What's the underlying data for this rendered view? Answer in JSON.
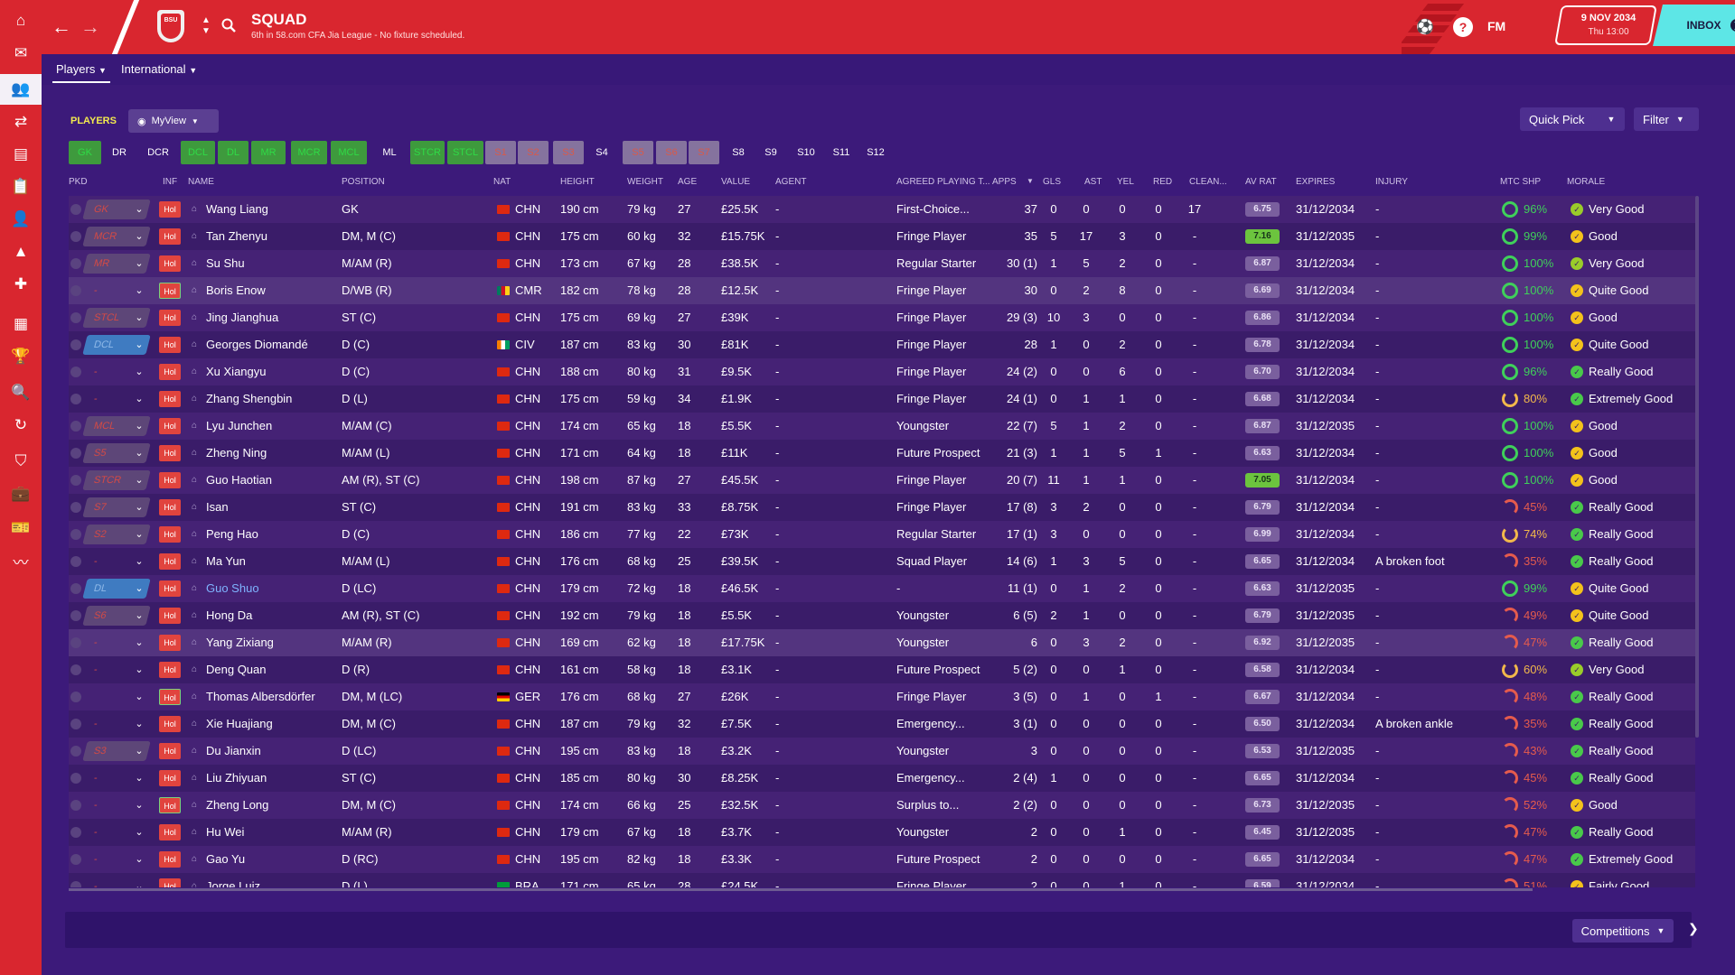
{
  "sidebar": {
    "items": [
      {
        "icon": "home-icon"
      },
      {
        "icon": "inbox-icon"
      },
      {
        "icon": "squad-icon",
        "active": true
      },
      {
        "icon": "transfers-icon"
      },
      {
        "icon": "dynamics-icon"
      },
      {
        "icon": "tactics-icon"
      },
      {
        "icon": "staff-icon"
      },
      {
        "icon": "training-icon"
      },
      {
        "icon": "medical-icon"
      },
      {
        "icon": "schedule-icon"
      },
      {
        "icon": "competitions-icon"
      },
      {
        "icon": "scouting-icon"
      },
      {
        "icon": "development-icon"
      },
      {
        "icon": "club-info-icon"
      },
      {
        "icon": "finances-icon"
      },
      {
        "icon": "tickets-icon"
      },
      {
        "icon": "data-hub-icon"
      }
    ]
  },
  "topbar": {
    "title": "SQUAD",
    "subtitle": "6th in 58.com CFA Jia League - No fixture scheduled.",
    "club_badge": "BSU",
    "fm_label": "FM",
    "date": "9 NOV 2034",
    "time": "Thu 13:00",
    "inbox_label": "INBOX"
  },
  "subnav": {
    "tabs": [
      "Players",
      "International"
    ]
  },
  "toolbar": {
    "players_label": "PLAYERS",
    "view_label": "MyView",
    "quick_pick": "Quick Pick",
    "filter": "Filter"
  },
  "formation_chips": [
    {
      "label": "GK",
      "style": "green"
    },
    {
      "label": "DR",
      "style": "none"
    },
    {
      "label": "DCR",
      "style": "none"
    },
    {
      "label": "DCL",
      "style": "green"
    },
    {
      "label": "DL",
      "style": "green"
    },
    {
      "label": "MR",
      "style": "green"
    },
    {
      "label": "MCR",
      "style": "green"
    },
    {
      "label": "MCL",
      "style": "green"
    },
    {
      "label": "ML",
      "style": "none"
    },
    {
      "label": "STCR",
      "style": "green"
    },
    {
      "label": "STCL",
      "style": "green"
    },
    {
      "label": "S1",
      "style": "gray"
    },
    {
      "label": "S2",
      "style": "gray"
    },
    {
      "label": "S3",
      "style": "gray"
    },
    {
      "label": "S4",
      "style": "none"
    },
    {
      "label": "S5",
      "style": "gray"
    },
    {
      "label": "S6",
      "style": "gray"
    },
    {
      "label": "S7",
      "style": "gray"
    },
    {
      "label": "S8",
      "style": "none"
    },
    {
      "label": "S9",
      "style": "none"
    },
    {
      "label": "S10",
      "style": "none"
    },
    {
      "label": "S11",
      "style": "none"
    },
    {
      "label": "S12",
      "style": "none"
    }
  ],
  "columns": [
    "PKD",
    "INF",
    "NAME",
    "POSITION",
    "NAT",
    "HEIGHT",
    "WEIGHT",
    "AGE",
    "VALUE",
    "AGENT",
    "AGREED PLAYING T...",
    "APPS",
    "GLS",
    "AST",
    "YEL",
    "RED",
    "CLEAN...",
    "AV RAT",
    "EXPIRES",
    "INJURY",
    "MTC SHP",
    "MORALE"
  ],
  "players": [
    {
      "sel": "GK",
      "selstyle": "gray",
      "inf": "Hol",
      "name": "Wang Liang",
      "pos": "GK",
      "nat": "CHN",
      "flag": "chn",
      "height": "190 cm",
      "weight": "79 kg",
      "age": "27",
      "value": "£25.5K",
      "agent": "-",
      "apt": "First-Choice...",
      "apps": "37",
      "gls": "0",
      "ast": "0",
      "yel": "0",
      "red": "0",
      "clean": "17",
      "avrat": "6.75",
      "expires": "31/12/2034",
      "injury": "-",
      "mtc": "96%",
      "mtcstate": "full",
      "morale": "Very Good",
      "mstate": "vg"
    },
    {
      "sel": "MCR",
      "selstyle": "gray",
      "inf": "Hol",
      "name": "Tan Zhenyu",
      "pos": "DM, M (C)",
      "nat": "CHN",
      "flag": "chn",
      "height": "175 cm",
      "weight": "60 kg",
      "age": "32",
      "value": "£15.75K",
      "agent": "-",
      "apt": "Fringe Player",
      "apps": "35",
      "gls": "5",
      "ast": "17",
      "yel": "3",
      "red": "0",
      "clean": "-",
      "avrat": "7.16",
      "ratgood": true,
      "expires": "31/12/2035",
      "injury": "-",
      "mtc": "99%",
      "mtcstate": "full",
      "morale": "Good",
      "mstate": "g"
    },
    {
      "sel": "MR",
      "selstyle": "gray",
      "inf": "Hol",
      "name": "Su Shu",
      "pos": "M/AM (R)",
      "nat": "CHN",
      "flag": "chn",
      "height": "173 cm",
      "weight": "67 kg",
      "age": "28",
      "value": "£38.5K",
      "agent": "-",
      "apt": "Regular Starter",
      "apps": "30 (1)",
      "gls": "1",
      "ast": "5",
      "yel": "2",
      "red": "0",
      "clean": "-",
      "avrat": "6.87",
      "expires": "31/12/2034",
      "injury": "-",
      "mtc": "100%",
      "mtcstate": "full",
      "morale": "Very Good",
      "mstate": "vg"
    },
    {
      "sel": "-",
      "selstyle": "dash",
      "inf": "Hol",
      "infhl": true,
      "name": "Boris Enow",
      "pos": "D/WB (R)",
      "nat": "CMR",
      "flag": "cmr",
      "height": "182 cm",
      "weight": "78 kg",
      "age": "28",
      "value": "£12.5K",
      "agent": "-",
      "apt": "Fringe Player",
      "apps": "30",
      "gls": "0",
      "ast": "2",
      "yel": "8",
      "red": "0",
      "clean": "-",
      "avrat": "6.69",
      "expires": "31/12/2034",
      "injury": "-",
      "mtc": "100%",
      "mtcstate": "full",
      "morale": "Quite Good",
      "mstate": "g"
    },
    {
      "sel": "STCL",
      "selstyle": "gray",
      "inf": "Hol",
      "name": "Jing Jianghua",
      "pos": "ST (C)",
      "nat": "CHN",
      "flag": "chn",
      "height": "175 cm",
      "weight": "69 kg",
      "age": "27",
      "value": "£39K",
      "agent": "-",
      "apt": "Fringe Player",
      "apps": "29 (3)",
      "gls": "10",
      "ast": "3",
      "yel": "0",
      "red": "0",
      "clean": "-",
      "avrat": "6.86",
      "expires": "31/12/2034",
      "injury": "-",
      "mtc": "100%",
      "mtcstate": "full",
      "morale": "Good",
      "mstate": "g"
    },
    {
      "sel": "DCL",
      "selstyle": "blue",
      "inf": "Hol",
      "name": "Georges Diomandé",
      "pos": "D (C)",
      "nat": "CIV",
      "flag": "civ",
      "height": "187 cm",
      "weight": "83 kg",
      "age": "30",
      "value": "£81K",
      "agent": "-",
      "apt": "Fringe Player",
      "apps": "28",
      "gls": "1",
      "ast": "0",
      "yel": "2",
      "red": "0",
      "clean": "-",
      "avrat": "6.78",
      "expires": "31/12/2034",
      "injury": "-",
      "mtc": "100%",
      "mtcstate": "full",
      "morale": "Quite Good",
      "mstate": "g"
    },
    {
      "sel": "-",
      "selstyle": "dash",
      "inf": "Hol",
      "name": "Xu Xiangyu",
      "pos": "D (C)",
      "nat": "CHN",
      "flag": "chn",
      "height": "188 cm",
      "weight": "80 kg",
      "age": "31",
      "value": "£9.5K",
      "agent": "-",
      "apt": "Fringe Player",
      "apps": "24 (2)",
      "gls": "0",
      "ast": "0",
      "yel": "6",
      "red": "0",
      "clean": "-",
      "avrat": "6.70",
      "expires": "31/12/2034",
      "injury": "-",
      "mtc": "96%",
      "mtcstate": "full",
      "morale": "Really Good",
      "mstate": "eg"
    },
    {
      "sel": "-",
      "selstyle": "dash",
      "inf": "Hol",
      "name": "Zhang Shengbin",
      "pos": "D (L)",
      "nat": "CHN",
      "flag": "chn",
      "height": "175 cm",
      "weight": "59 kg",
      "age": "34",
      "value": "£1.9K",
      "agent": "-",
      "apt": "Fringe Player",
      "apps": "24 (1)",
      "gls": "0",
      "ast": "1",
      "yel": "1",
      "red": "0",
      "clean": "-",
      "avrat": "6.68",
      "expires": "31/12/2034",
      "injury": "-",
      "mtc": "80%",
      "mtcstate": "mid",
      "morale": "Extremely Good",
      "mstate": "eg"
    },
    {
      "sel": "MCL",
      "selstyle": "gray",
      "inf": "Hol",
      "name": "Lyu Junchen",
      "pos": "M/AM (C)",
      "nat": "CHN",
      "flag": "chn",
      "height": "174 cm",
      "weight": "65 kg",
      "age": "18",
      "value": "£5.5K",
      "agent": "-",
      "apt": "Youngster",
      "apps": "22 (7)",
      "gls": "5",
      "ast": "1",
      "yel": "2",
      "red": "0",
      "clean": "-",
      "avrat": "6.87",
      "expires": "31/12/2035",
      "injury": "-",
      "mtc": "100%",
      "mtcstate": "full",
      "morale": "Good",
      "mstate": "g"
    },
    {
      "sel": "S5",
      "selstyle": "gray",
      "inf": "Hol",
      "name": "Zheng Ning",
      "pos": "M/AM (L)",
      "nat": "CHN",
      "flag": "chn",
      "height": "171 cm",
      "weight": "64 kg",
      "age": "18",
      "value": "£11K",
      "agent": "-",
      "apt": "Future Prospect",
      "apps": "21 (3)",
      "gls": "1",
      "ast": "1",
      "yel": "5",
      "red": "1",
      "clean": "-",
      "avrat": "6.63",
      "expires": "31/12/2034",
      "injury": "-",
      "mtc": "100%",
      "mtcstate": "full",
      "morale": "Good",
      "mstate": "g"
    },
    {
      "sel": "STCR",
      "selstyle": "gray",
      "inf": "Hol",
      "name": "Guo Haotian",
      "pos": "AM (R), ST (C)",
      "nat": "CHN",
      "flag": "chn",
      "height": "198 cm",
      "weight": "87 kg",
      "age": "27",
      "value": "£45.5K",
      "agent": "-",
      "apt": "Fringe Player",
      "apps": "20 (7)",
      "gls": "11",
      "ast": "1",
      "yel": "1",
      "red": "0",
      "clean": "-",
      "avrat": "7.05",
      "ratgood": true,
      "expires": "31/12/2034",
      "injury": "-",
      "mtc": "100%",
      "mtcstate": "full",
      "morale": "Good",
      "mstate": "g"
    },
    {
      "sel": "S7",
      "selstyle": "gray",
      "inf": "Hol",
      "name": "Isan",
      "pos": "ST (C)",
      "nat": "CHN",
      "flag": "chn",
      "height": "191 cm",
      "weight": "83 kg",
      "age": "33",
      "value": "£8.75K",
      "agent": "-",
      "apt": "Fringe Player",
      "apps": "17 (8)",
      "gls": "3",
      "ast": "2",
      "yel": "0",
      "red": "0",
      "clean": "-",
      "avrat": "6.79",
      "expires": "31/12/2034",
      "injury": "-",
      "mtc": "45%",
      "mtcstate": "low",
      "morale": "Really Good",
      "mstate": "eg"
    },
    {
      "sel": "S2",
      "selstyle": "gray",
      "inf": "Hol",
      "name": "Peng Hao",
      "pos": "D (C)",
      "nat": "CHN",
      "flag": "chn",
      "height": "186 cm",
      "weight": "77 kg",
      "age": "22",
      "value": "£73K",
      "agent": "-",
      "apt": "Regular Starter",
      "apps": "17 (1)",
      "gls": "3",
      "ast": "0",
      "yel": "0",
      "red": "0",
      "clean": "-",
      "avrat": "6.99",
      "expires": "31/12/2034",
      "injury": "-",
      "mtc": "74%",
      "mtcstate": "mid",
      "morale": "Really Good",
      "mstate": "eg"
    },
    {
      "sel": "-",
      "selstyle": "dash",
      "inf": "Hol",
      "name": "Ma Yun",
      "pos": "M/AM (L)",
      "nat": "CHN",
      "flag": "chn",
      "height": "176 cm",
      "weight": "68 kg",
      "age": "25",
      "value": "£39.5K",
      "agent": "-",
      "apt": "Squad Player",
      "apps": "14 (6)",
      "gls": "1",
      "ast": "3",
      "yel": "5",
      "red": "0",
      "clean": "-",
      "avrat": "6.65",
      "expires": "31/12/2034",
      "injury": "A broken foot",
      "mtc": "35%",
      "mtcstate": "low",
      "morale": "Really Good",
      "mstate": "eg"
    },
    {
      "sel": "DL",
      "selstyle": "blue",
      "inf": "Hol",
      "name": "Guo Shuo",
      "link": true,
      "pos": "D (LC)",
      "nat": "CHN",
      "flag": "chn",
      "height": "179 cm",
      "weight": "72 kg",
      "age": "18",
      "value": "£46.5K",
      "agent": "-",
      "apt": "-",
      "apps": "11 (1)",
      "gls": "0",
      "ast": "1",
      "yel": "2",
      "red": "0",
      "clean": "-",
      "avrat": "6.63",
      "expires": "31/12/2035",
      "injury": "-",
      "mtc": "99%",
      "mtcstate": "full",
      "morale": "Quite Good",
      "mstate": "g"
    },
    {
      "sel": "S6",
      "selstyle": "gray",
      "inf": "Hol",
      "name": "Hong Da",
      "pos": "AM (R), ST (C)",
      "nat": "CHN",
      "flag": "chn",
      "height": "192 cm",
      "weight": "79 kg",
      "age": "18",
      "value": "£5.5K",
      "agent": "-",
      "apt": "Youngster",
      "apps": "6 (5)",
      "gls": "2",
      "ast": "1",
      "yel": "0",
      "red": "0",
      "clean": "-",
      "avrat": "6.79",
      "expires": "31/12/2035",
      "injury": "-",
      "mtc": "49%",
      "mtcstate": "low",
      "morale": "Quite Good",
      "mstate": "g"
    },
    {
      "sel": "-",
      "selstyle": "dash",
      "inf": "Hol",
      "name": "Yang Zixiang",
      "pos": "M/AM (R)",
      "nat": "CHN",
      "flag": "chn",
      "height": "169 cm",
      "weight": "62 kg",
      "age": "18",
      "value": "£17.75K",
      "agent": "-",
      "apt": "Youngster",
      "apps": "6",
      "gls": "0",
      "ast": "3",
      "yel": "2",
      "red": "0",
      "clean": "-",
      "avrat": "6.92",
      "expires": "31/12/2035",
      "injury": "-",
      "mtc": "47%",
      "mtcstate": "low",
      "morale": "Really Good",
      "mstate": "eg"
    },
    {
      "sel": "-",
      "selstyle": "dash",
      "inf": "Hol",
      "name": "Deng Quan",
      "pos": "D (R)",
      "nat": "CHN",
      "flag": "chn",
      "height": "161 cm",
      "weight": "58 kg",
      "age": "18",
      "value": "£3.1K",
      "agent": "-",
      "apt": "Future Prospect",
      "apps": "5 (2)",
      "gls": "0",
      "ast": "0",
      "yel": "1",
      "red": "0",
      "clean": "-",
      "avrat": "6.58",
      "expires": "31/12/2034",
      "injury": "-",
      "mtc": "60%",
      "mtcstate": "mid",
      "morale": "Very Good",
      "mstate": "vg"
    },
    {
      "sel": "",
      "selstyle": "empty",
      "inf": "Hol",
      "infhl": true,
      "name": "Thomas Albersdörfer",
      "pos": "DM, M (LC)",
      "nat": "GER",
      "flag": "ger",
      "height": "176 cm",
      "weight": "68 kg",
      "age": "27",
      "value": "£26K",
      "agent": "-",
      "apt": "Fringe Player",
      "apps": "3 (5)",
      "gls": "0",
      "ast": "1",
      "yel": "0",
      "red": "1",
      "clean": "-",
      "avrat": "6.67",
      "expires": "31/12/2034",
      "injury": "-",
      "mtc": "48%",
      "mtcstate": "low",
      "morale": "Really Good",
      "mstate": "eg"
    },
    {
      "sel": "-",
      "selstyle": "dash",
      "inf": "Hol",
      "name": "Xie Huajiang",
      "pos": "DM, M (C)",
      "nat": "CHN",
      "flag": "chn",
      "height": "187 cm",
      "weight": "79 kg",
      "age": "32",
      "value": "£7.5K",
      "agent": "-",
      "apt": "Emergency...",
      "apps": "3 (1)",
      "gls": "0",
      "ast": "0",
      "yel": "0",
      "red": "0",
      "clean": "-",
      "avrat": "6.50",
      "expires": "31/12/2034",
      "injury": "A broken ankle",
      "mtc": "35%",
      "mtcstate": "low",
      "morale": "Really Good",
      "mstate": "eg"
    },
    {
      "sel": "S3",
      "selstyle": "gray",
      "inf": "Hol",
      "name": "Du Jianxin",
      "pos": "D (LC)",
      "nat": "CHN",
      "flag": "chn",
      "height": "195 cm",
      "weight": "83 kg",
      "age": "18",
      "value": "£3.2K",
      "agent": "-",
      "apt": "Youngster",
      "apps": "3",
      "gls": "0",
      "ast": "0",
      "yel": "0",
      "red": "0",
      "clean": "-",
      "avrat": "6.53",
      "expires": "31/12/2035",
      "injury": "-",
      "mtc": "43%",
      "mtcstate": "low",
      "morale": "Really Good",
      "mstate": "eg"
    },
    {
      "sel": "-",
      "selstyle": "dash",
      "inf": "Hol",
      "name": "Liu Zhiyuan",
      "pos": "ST (C)",
      "nat": "CHN",
      "flag": "chn",
      "height": "185 cm",
      "weight": "80 kg",
      "age": "30",
      "value": "£8.25K",
      "agent": "-",
      "apt": "Emergency...",
      "apps": "2 (4)",
      "gls": "1",
      "ast": "0",
      "yel": "0",
      "red": "0",
      "clean": "-",
      "avrat": "6.65",
      "expires": "31/12/2034",
      "injury": "-",
      "mtc": "45%",
      "mtcstate": "low",
      "morale": "Really Good",
      "mstate": "eg"
    },
    {
      "sel": "-",
      "selstyle": "dash",
      "inf": "Hol",
      "infhl": true,
      "name": "Zheng Long",
      "pos": "DM, M (C)",
      "nat": "CHN",
      "flag": "chn",
      "height": "174 cm",
      "weight": "66 kg",
      "age": "25",
      "value": "£32.5K",
      "agent": "-",
      "apt": "Surplus to...",
      "apps": "2 (2)",
      "gls": "0",
      "ast": "0",
      "yel": "0",
      "red": "0",
      "clean": "-",
      "avrat": "6.73",
      "expires": "31/12/2035",
      "injury": "-",
      "mtc": "52%",
      "mtcstate": "low",
      "morale": "Good",
      "mstate": "g"
    },
    {
      "sel": "-",
      "selstyle": "dash",
      "inf": "Hol",
      "name": "Hu Wei",
      "pos": "M/AM (R)",
      "nat": "CHN",
      "flag": "chn",
      "height": "179 cm",
      "weight": "67 kg",
      "age": "18",
      "value": "£3.7K",
      "agent": "-",
      "apt": "Youngster",
      "apps": "2",
      "gls": "0",
      "ast": "0",
      "yel": "1",
      "red": "0",
      "clean": "-",
      "avrat": "6.45",
      "expires": "31/12/2035",
      "injury": "-",
      "mtc": "47%",
      "mtcstate": "low",
      "morale": "Really Good",
      "mstate": "eg"
    },
    {
      "sel": "-",
      "selstyle": "dash",
      "inf": "Hol",
      "name": "Gao Yu",
      "pos": "D (RC)",
      "nat": "CHN",
      "flag": "chn",
      "height": "195 cm",
      "weight": "82 kg",
      "age": "18",
      "value": "£3.3K",
      "agent": "-",
      "apt": "Future Prospect",
      "apps": "2",
      "gls": "0",
      "ast": "0",
      "yel": "0",
      "red": "0",
      "clean": "-",
      "avrat": "6.65",
      "expires": "31/12/2034",
      "injury": "-",
      "mtc": "47%",
      "mtcstate": "low",
      "morale": "Extremely Good",
      "mstate": "eg"
    },
    {
      "sel": "-",
      "selstyle": "dash",
      "inf": "Hol",
      "name": "Jorge Luiz",
      "pos": "D (L)",
      "nat": "BRA",
      "flag": "bra",
      "height": "171 cm",
      "weight": "65 kg",
      "age": "28",
      "value": "£24.5K",
      "agent": "-",
      "apt": "Fringe Player",
      "apps": "2",
      "gls": "0",
      "ast": "0",
      "yel": "1",
      "red": "0",
      "clean": "-",
      "avrat": "6.59",
      "expires": "31/12/2034",
      "injury": "-",
      "mtc": "51%",
      "mtcstate": "low",
      "morale": "Fairly Good",
      "mstate": "g"
    }
  ],
  "bottom": {
    "competitions_label": "Competitions"
  }
}
